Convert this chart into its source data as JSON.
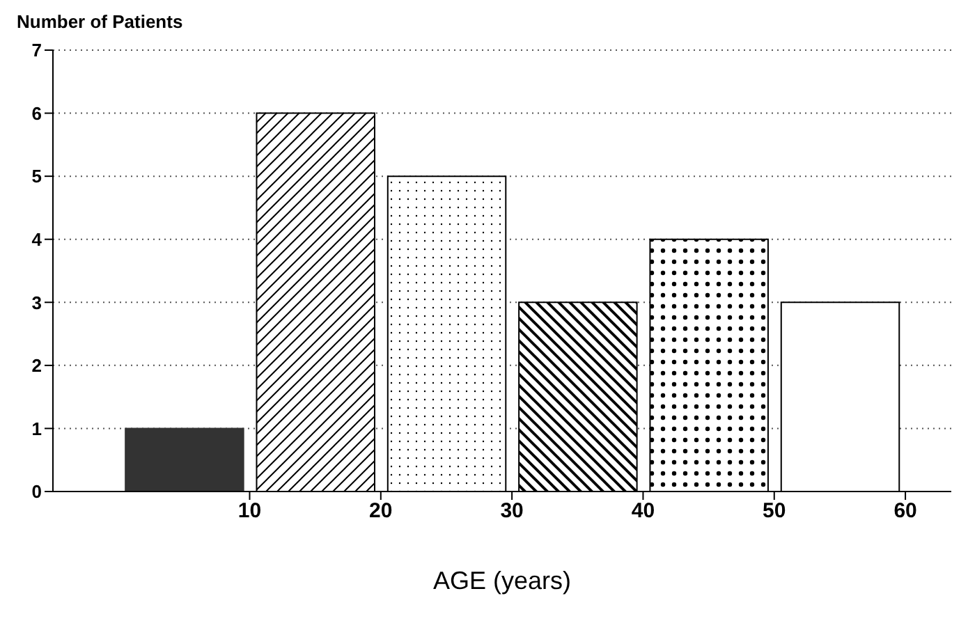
{
  "chart_data": {
    "type": "histogram",
    "ylabel": "Number of Patients",
    "xlabel": "AGE (years)",
    "bins": [
      0,
      10,
      20,
      30,
      40,
      50,
      60
    ],
    "values": [
      1,
      6,
      5,
      3,
      4,
      3
    ],
    "colors": [
      "#333333",
      "#000000",
      "#000000",
      "#000000",
      "#000000",
      "#ffffff"
    ],
    "xlim": [
      -5,
      63.5
    ],
    "xticks": [
      10,
      20,
      30,
      40,
      50,
      60
    ],
    "ylim": [
      0,
      7
    ],
    "yticks": [
      0,
      1,
      2,
      3,
      4,
      5,
      6,
      7
    ],
    "grid": "y"
  }
}
